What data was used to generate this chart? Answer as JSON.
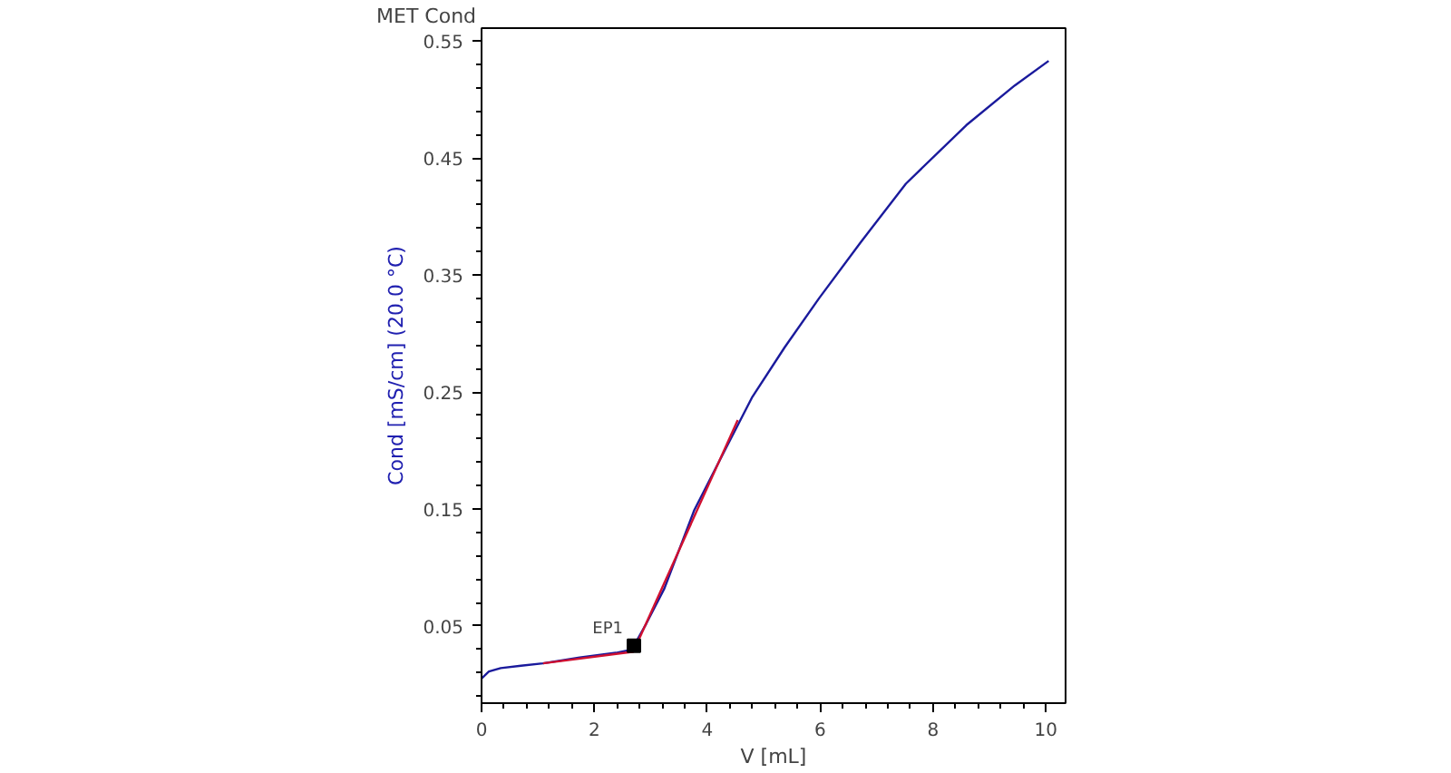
{
  "chart_data": {
    "type": "line",
    "title": "MET Cond",
    "xlabel": "V [mL]",
    "ylabel": "Cond [mS/cm] (20.0 °C)",
    "xlim": [
      0,
      10.35
    ],
    "ylim": [
      -0.016,
      0.561
    ],
    "xticks": [
      0,
      2,
      4,
      6,
      8,
      10
    ],
    "yticks": [
      0.05,
      0.15,
      0.25,
      0.35,
      0.45,
      0.55
    ],
    "grid": false,
    "series": [
      {
        "color": "#1a1a9c",
        "x": [
          0,
          0.13,
          0.34,
          0.7,
          1.09,
          1.74,
          2.38,
          2.59,
          2.7,
          2.92,
          3.24,
          3.77,
          4.31,
          4.79,
          5.37,
          5.98,
          6.72,
          7.52,
          8.59,
          9.45,
          10.05
        ],
        "values": [
          0.005,
          0.011,
          0.014,
          0.016,
          0.018,
          0.023,
          0.027,
          0.029,
          0.033,
          0.052,
          0.082,
          0.149,
          0.2,
          0.245,
          0.288,
          0.33,
          0.378,
          0.428,
          0.478,
          0.512,
          0.533
        ]
      },
      {
        "color": "#d01030",
        "x": [
          1.09,
          2.7
        ],
        "values": [
          0.018,
          0.028
        ]
      },
      {
        "color": "#d01030",
        "x": [
          2.7,
          4.54
        ],
        "values": [
          0.029,
          0.226
        ]
      },
      {
        "type": "scatter",
        "color": "#000000",
        "marker": "square",
        "x": [
          2.7
        ],
        "values": [
          0.033
        ]
      }
    ],
    "annotations": [
      {
        "text": "EP1",
        "x": 2.7,
        "y": 0.033
      }
    ]
  }
}
